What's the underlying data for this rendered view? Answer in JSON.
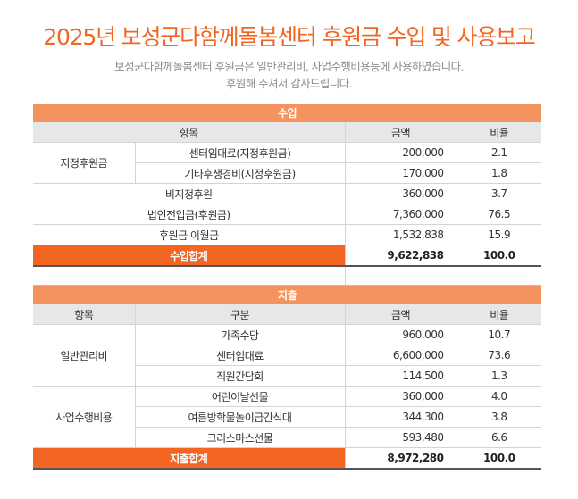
{
  "title": "2025년 보성군다함께돌봄센터 후원금 수입 및 사용보고",
  "subtitle_lines": [
    "보성군다함께돌봄센터 후원금은 일반관리비, 사업수행비용등에 사용하였습니다.",
    "후원해 주셔서 감사드립니다."
  ],
  "income": {
    "section_label": "수입",
    "headers": {
      "item": "항목",
      "amount": "금액",
      "ratio": "비율"
    },
    "designated_group": "지정후원금",
    "rows": [
      {
        "label": "센터임대료(지정후원금)",
        "amount": "200,000",
        "ratio": "2.1"
      },
      {
        "label": "기타후생경비(지정후원금)",
        "amount": "170,000",
        "ratio": "1.8"
      },
      {
        "label": "비지정후원",
        "amount": "360,000",
        "ratio": "3.7"
      },
      {
        "label": "법인전입금(후원금)",
        "amount": "7,360,000",
        "ratio": "76.5"
      },
      {
        "label": "후원금 이월금",
        "amount": "1,532,838",
        "ratio": "15.9"
      }
    ],
    "total": {
      "label": "수입합계",
      "amount": "9,622,838",
      "ratio": "100.0"
    }
  },
  "expense": {
    "section_label": "지출",
    "headers": {
      "item": "항목",
      "category": "구분",
      "amount": "금액",
      "ratio": "비율"
    },
    "groups": [
      {
        "label": "일반관리비",
        "rows": [
          {
            "label": "가족수당",
            "amount": "960,000",
            "ratio": "10.7"
          },
          {
            "label": "센터임대료",
            "amount": "6,600,000",
            "ratio": "73.6"
          },
          {
            "label": "직원간담회",
            "amount": "114,500",
            "ratio": "1.3"
          }
        ]
      },
      {
        "label": "사업수행비용",
        "rows": [
          {
            "label": "어린이날선물",
            "amount": "360,000",
            "ratio": "4.0"
          },
          {
            "label": "여름방학물놀이급간식대",
            "amount": "344,300",
            "ratio": "3.8"
          },
          {
            "label": "크리스마스선물",
            "amount": "593,480",
            "ratio": "6.6"
          }
        ]
      }
    ],
    "total": {
      "label": "지출합계",
      "amount": "8,972,280",
      "ratio": "100.0"
    }
  },
  "colors": {
    "accent": "#f26522",
    "section_header": "#f5935f",
    "column_header": "#e6e7e9"
  }
}
